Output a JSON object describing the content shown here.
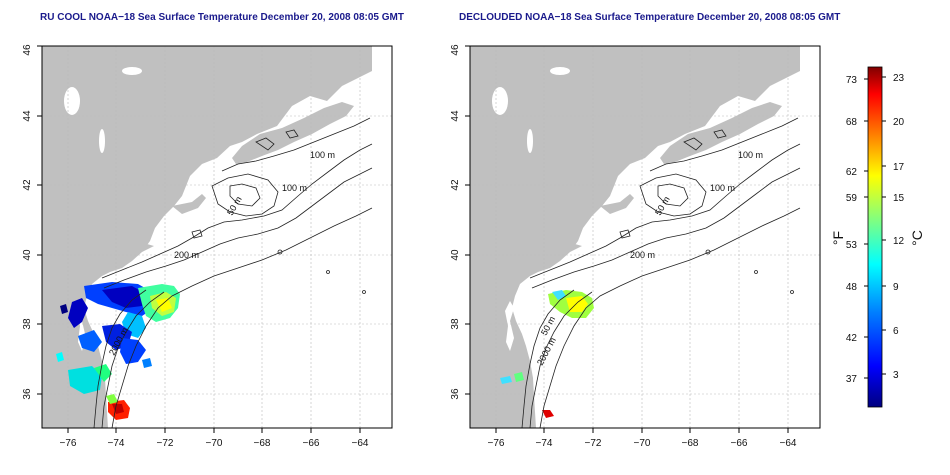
{
  "panels": {
    "left": {
      "title": "RU COOL NOAA−18 Sea Surface Temperature December 20, 2008 08:05 GMT"
    },
    "right": {
      "title": "DECLOUDED NOAA−18 Sea Surface Temperature December 20, 2008 08:05 GMT"
    }
  },
  "axes": {
    "x_ticks": [
      "−76",
      "−74",
      "−72",
      "−70",
      "−68",
      "−66",
      "−64"
    ],
    "y_ticks": [
      "36",
      "38",
      "40",
      "42",
      "44",
      "46"
    ]
  },
  "contour_labels": [
    "100 m",
    "100 m",
    "50 m",
    "200 m",
    "2000 m"
  ],
  "contour_labels_right": [
    "100 m",
    "100 m",
    "50 m",
    "200 m",
    "50 m",
    "2000 m"
  ],
  "colorbar": {
    "fahrenheit_ticks": [
      "73",
      "68",
      "62",
      "59",
      "53",
      "48",
      "42",
      "37"
    ],
    "celsius_ticks": [
      "23",
      "20",
      "17",
      "15",
      "12",
      "9",
      "6",
      "3"
    ],
    "fahrenheit_label": "°F",
    "celsius_label": "°C",
    "colors": [
      "#000080",
      "#0000ff",
      "#0080ff",
      "#00ffff",
      "#80ff80",
      "#ffff00",
      "#ff8000",
      "#ff0000",
      "#800000"
    ]
  },
  "colors": {
    "land": "#c0c0c0",
    "title": "#1a1a8c",
    "grid": "#bbbbbb"
  }
}
